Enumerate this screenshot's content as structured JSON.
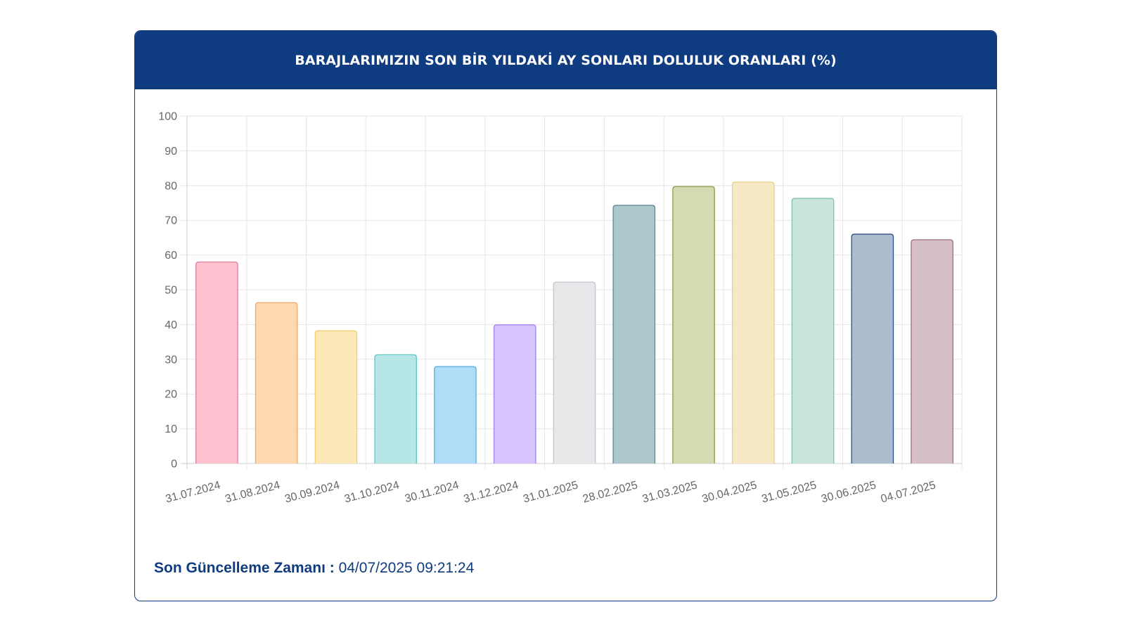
{
  "header": {
    "title": "BARAJLARIMIZIN SON BİR YILDAKİ AY SONLARI DOLULUK ORANLARI (%)"
  },
  "footer": {
    "label": "Son Güncelleme Zamanı :",
    "value": "04/07/2025 09:21:24"
  },
  "colors": {
    "header_bg": "#0f3b80",
    "card_border": "#0f3b80",
    "footer_text": "#0f3b80"
  },
  "chart_data": {
    "type": "bar",
    "categories": [
      "31.07.2024",
      "31.08.2024",
      "30.09.2024",
      "31.10.2024",
      "30.11.2024",
      "31.12.2024",
      "31.01.2025",
      "28.02.2025",
      "31.03.2025",
      "30.04.2025",
      "31.05.2025",
      "30.06.2025",
      "04.07.2025"
    ],
    "values": [
      58.0,
      46.3,
      38.2,
      31.3,
      27.9,
      39.9,
      52.2,
      74.3,
      79.7,
      81.0,
      76.3,
      66.0,
      64.4
    ],
    "ylim": [
      0,
      100
    ],
    "yticks": [
      0,
      10,
      20,
      30,
      40,
      50,
      60,
      70,
      80,
      90,
      100
    ],
    "grid": true,
    "bar_colors": [
      {
        "fill": "#ffc0cf",
        "stroke": "#e27e98"
      },
      {
        "fill": "#fed8b1",
        "stroke": "#f2a865"
      },
      {
        "fill": "#fde8b8",
        "stroke": "#f2cf6e"
      },
      {
        "fill": "#b6e6e6",
        "stroke": "#63c4c4"
      },
      {
        "fill": "#b0dcf7",
        "stroke": "#5ab0e6"
      },
      {
        "fill": "#d6c4fe",
        "stroke": "#a480f5"
      },
      {
        "fill": "#e7e8ea",
        "stroke": "#c3c5c9"
      },
      {
        "fill": "#acc8cc",
        "stroke": "#5d8a92"
      },
      {
        "fill": "#d5dbb0",
        "stroke": "#8f9a4a"
      },
      {
        "fill": "#f7e9c6",
        "stroke": "#e8cf87"
      },
      {
        "fill": "#c8e5de",
        "stroke": "#86c0b0"
      },
      {
        "fill": "#aebccf",
        "stroke": "#32507c"
      },
      {
        "fill": "#d7bfc8",
        "stroke": "#9e6d7e"
      }
    ]
  }
}
